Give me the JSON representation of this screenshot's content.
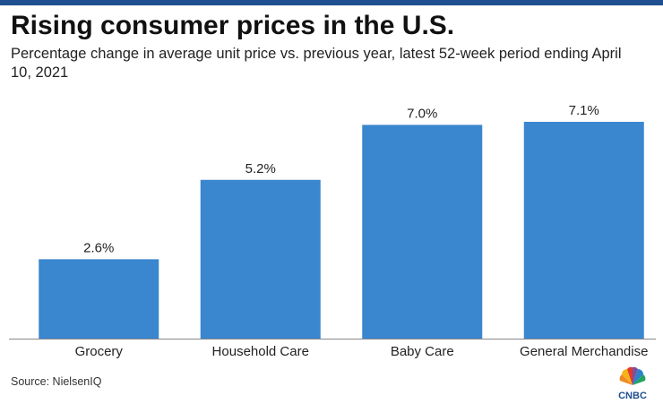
{
  "header": {
    "title": "Rising consumer prices in the U.S.",
    "subtitle": "Percentage change in average unit price vs. previous year, latest 52-week period ending April 10, 2021"
  },
  "footer": {
    "source": "Source: NielsenIQ",
    "logo_text": "CNBC"
  },
  "colors": {
    "bar": "#3a86cf",
    "axis": "#888888",
    "accent": "#1f4f8f"
  },
  "chart_data": {
    "type": "bar",
    "title": "Rising consumer prices in the U.S.",
    "subtitle": "Percentage change in average unit price vs. previous year, latest 52-week period ending April 10, 2021",
    "categories": [
      "Grocery",
      "Household Care",
      "Baby Care",
      "General Merchandise"
    ],
    "values": [
      2.6,
      5.2,
      7.0,
      7.1
    ],
    "value_labels": [
      "2.6%",
      "5.2%",
      "7.0%",
      "7.1%"
    ],
    "xlabel": "",
    "ylabel": "",
    "ylim": [
      0,
      7.1
    ],
    "grid": false,
    "legend": "none"
  }
}
